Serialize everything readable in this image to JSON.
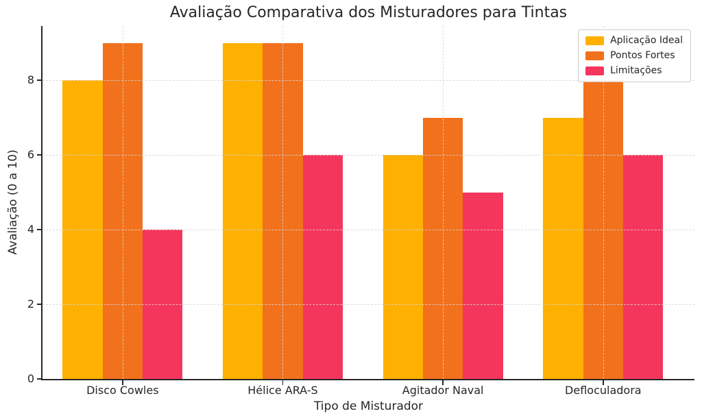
{
  "chart_data": {
    "type": "bar",
    "title": "Avaliação Comparativa dos Misturadores para Tintas",
    "xlabel": "Tipo de Misturador",
    "ylabel": "Avaliação (0 a 10)",
    "categories": [
      "Disco Cowles",
      "Hélice ARA-S",
      "Agitador Naval",
      "Defloculadora"
    ],
    "series": [
      {
        "name": "Aplicação Ideal",
        "color": "#FFB000",
        "values": [
          8,
          9,
          6,
          7
        ]
      },
      {
        "name": "Pontos Fortes",
        "color": "#F2711C",
        "values": [
          9,
          9,
          7,
          8
        ]
      },
      {
        "name": "Limitações",
        "color": "#F5365C",
        "values": [
          4,
          6,
          5,
          6
        ]
      }
    ],
    "yticks": [
      0,
      2,
      4,
      6,
      8
    ],
    "ylim": [
      0,
      9.45
    ],
    "xlim": [
      -0.5,
      3.57
    ],
    "bar_width": 0.25,
    "grid": true,
    "grid_style": "dashed",
    "grid_above_bars": true,
    "legend_position": "upper right",
    "style": {
      "axis_color": "#262626",
      "grid_color": "#d6d6d6",
      "text_color": "#262626",
      "background": "#ffffff"
    }
  }
}
